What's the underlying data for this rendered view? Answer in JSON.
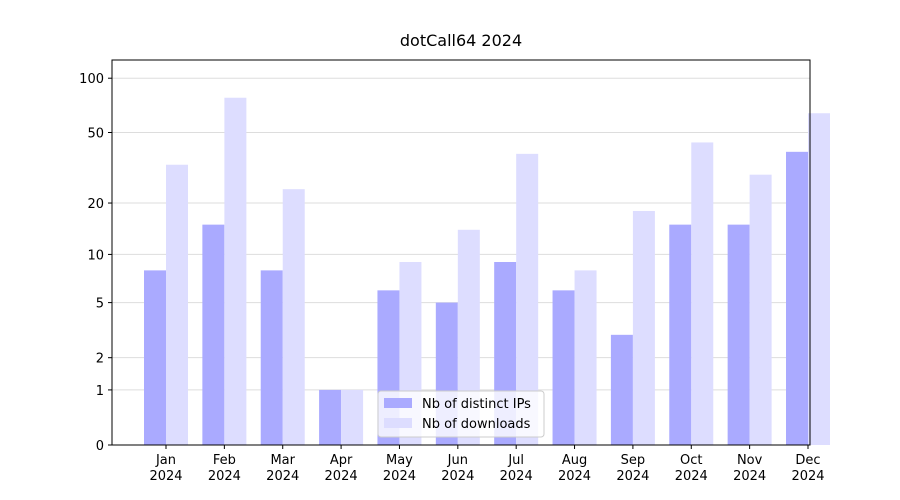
{
  "chart_data": {
    "type": "bar",
    "title": "dotCall64 2024",
    "categories": [
      "Jan 2024",
      "Feb 2024",
      "Mar 2024",
      "Apr 2024",
      "May 2024",
      "Jun 2024",
      "Jul 2024",
      "Aug 2024",
      "Sep 2024",
      "Oct 2024",
      "Nov 2024",
      "Dec 2024"
    ],
    "series": [
      {
        "name": "Nb of distinct IPs",
        "color": "#aaaaff",
        "values": [
          8,
          15,
          8,
          1,
          6,
          5,
          9,
          6,
          3,
          15,
          15,
          39
        ]
      },
      {
        "name": "Nb of downloads",
        "color": "#ddddff",
        "values": [
          33,
          78,
          24,
          1,
          9,
          14,
          38,
          8,
          18,
          44,
          29,
          64
        ]
      }
    ],
    "yscale": "log1p",
    "ylim": [
      0,
      126
    ],
    "yticks": [
      0,
      1,
      2,
      5,
      10,
      20,
      50,
      100
    ],
    "grid": true,
    "legend": "lower center"
  }
}
